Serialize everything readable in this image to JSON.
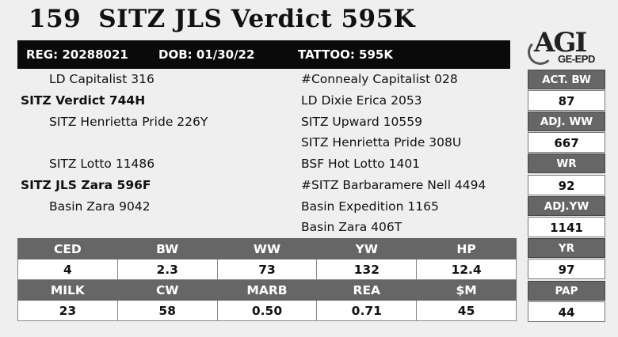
{
  "title": {
    "lot": "159",
    "name": "SITZ JLS Verdict 595K"
  },
  "reg_bar": {
    "reg": "REG: 20288021",
    "dob": "DOB: 01/30/22",
    "tattoo": "TATTOO: 595K"
  },
  "logo": {
    "agi": "AGI",
    "epd": "GE-EPD"
  },
  "pedigree": {
    "sire_sire": "LD Capitalist 316",
    "sire": "SITZ Verdict 744H",
    "sire_dam": "SITZ Henrietta Pride 226Y",
    "dam_sire": "SITZ Lotto 11486",
    "dam": "SITZ JLS Zara 596F",
    "dam_dam": "Basin Zara 9042",
    "g1": "#Connealy Capitalist 028",
    "g2": "LD Dixie Erica 2053",
    "g3": "SITZ Upward 10559",
    "g4": "SITZ Henrietta Pride 308U",
    "g5": "BSF Hot Lotto 1401",
    "g6": "#SITZ Barbaramere Nell 4494",
    "g7": "Basin Expedition 1165",
    "g8": "Basin Zara 406T"
  },
  "side_stats": [
    {
      "label": "ACT. BW",
      "value": "87"
    },
    {
      "label": "ADJ. WW",
      "value": "667"
    },
    {
      "label": "WR",
      "value": "92"
    },
    {
      "label": "ADJ.YW",
      "value": "1141"
    },
    {
      "label": "YR",
      "value": "97"
    },
    {
      "label": "PAP",
      "value": "44"
    }
  ],
  "epds_row1": {
    "headers": [
      "CED",
      "BW",
      "WW",
      "YW",
      "HP"
    ],
    "values": [
      "4",
      "2.3",
      "73",
      "132",
      "12.4"
    ]
  },
  "epds_row2": {
    "headers": [
      "MILK",
      "CW",
      "MARB",
      "REA",
      "$M"
    ],
    "values": [
      "23",
      "58",
      "0.50",
      "0.71",
      "45"
    ]
  }
}
